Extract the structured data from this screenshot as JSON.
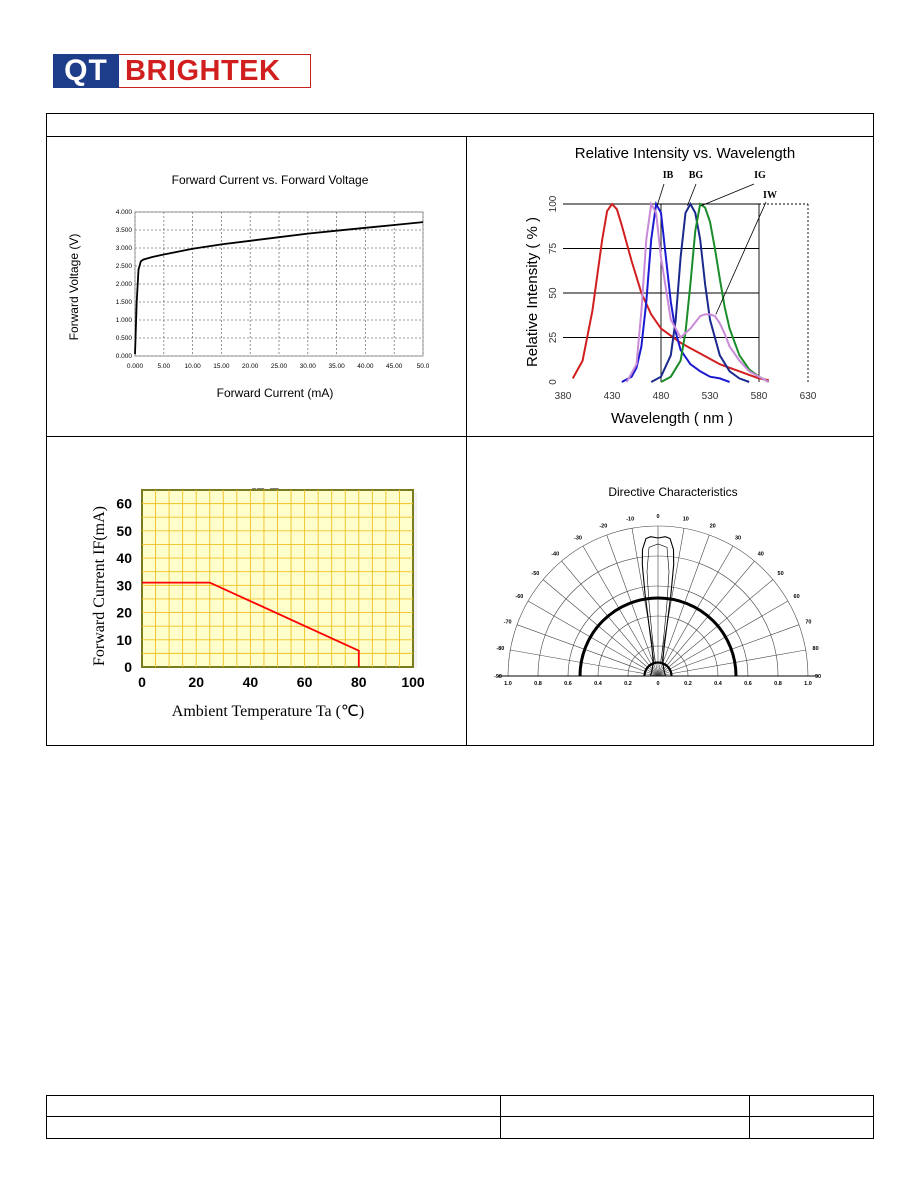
{
  "logo": {
    "part1": "QT",
    "part2": "BRIGHTEK"
  },
  "chart_data": [
    {
      "type": "line",
      "title": "Forward Current vs. Forward Voltage",
      "xlabel": "Forward Current (mA)",
      "ylabel": "Forward Voltage (V)",
      "x_ticks": [
        "0.000",
        "5.00",
        "10.00",
        "15.00",
        "20.00",
        "25.00",
        "30.00",
        "35.00",
        "40.00",
        "45.00",
        "50.0"
      ],
      "y_ticks": [
        "0.000",
        "0.500",
        "1.000",
        "1.500",
        "2.000",
        "2.500",
        "3.000",
        "3.500",
        "4.000"
      ],
      "xlim": [
        0,
        50
      ],
      "ylim": [
        0,
        4
      ],
      "grid": true,
      "series": [
        {
          "color": "#000000",
          "x": [
            0,
            0.3,
            0.6,
            1.0,
            1.5,
            3,
            5,
            10,
            15,
            20,
            25,
            30,
            35,
            40,
            45,
            50
          ],
          "y": [
            0.05,
            1.5,
            2.4,
            2.63,
            2.68,
            2.75,
            2.82,
            2.98,
            3.1,
            3.2,
            3.3,
            3.4,
            3.48,
            3.56,
            3.64,
            3.72
          ]
        }
      ]
    },
    {
      "type": "line",
      "title": "Relative Intensity vs. Wavelength",
      "xlabel": "Wavelength ( nm )",
      "ylabel": "Relative Intensity ( % )",
      "x_ticks": [
        "380",
        "430",
        "480",
        "530",
        "580",
        "630"
      ],
      "y_ticks": [
        "0",
        "25",
        "50",
        "75",
        "100"
      ],
      "xlim": [
        380,
        630
      ],
      "ylim": [
        0,
        100
      ],
      "grid": true,
      "annotations": [
        "IB",
        "BG",
        "IG",
        "IW"
      ],
      "series": [
        {
          "name": "IW",
          "color": "#d11f1f",
          "x": [
            390,
            400,
            410,
            420,
            425,
            430,
            435,
            440,
            450,
            460,
            470,
            480,
            490,
            500,
            510,
            520,
            530,
            540,
            550,
            560,
            570,
            580,
            590
          ],
          "y": [
            2,
            12,
            40,
            80,
            96,
            100,
            97,
            88,
            68,
            50,
            38,
            30,
            26,
            22,
            19,
            16,
            13,
            10,
            8,
            6,
            4,
            2,
            1
          ]
        },
        {
          "name": "IB",
          "color": "#1a1ad0",
          "x": [
            440,
            450,
            455,
            460,
            465,
            470,
            475,
            480,
            485,
            490,
            495,
            500,
            510,
            520,
            530,
            540,
            550
          ],
          "y": [
            0,
            3,
            8,
            20,
            45,
            80,
            100,
            95,
            70,
            45,
            28,
            18,
            10,
            6,
            3,
            2,
            0
          ]
        },
        {
          "name": "BG",
          "color": "#1a2a8c",
          "x": [
            470,
            480,
            490,
            495,
            500,
            505,
            510,
            515,
            520,
            525,
            530,
            540,
            550,
            560,
            570
          ],
          "y": [
            0,
            3,
            15,
            35,
            70,
            95,
            100,
            95,
            80,
            55,
            35,
            15,
            6,
            2,
            0
          ]
        },
        {
          "name": "IG",
          "color": "#1a8c2a",
          "x": [
            480,
            490,
            500,
            505,
            510,
            515,
            520,
            525,
            530,
            535,
            540,
            545,
            550,
            560,
            570,
            580,
            590
          ],
          "y": [
            0,
            3,
            12,
            28,
            55,
            85,
            100,
            98,
            90,
            75,
            58,
            42,
            30,
            15,
            7,
            3,
            0
          ]
        },
        {
          "name": "IW-violet",
          "color": "#c98ad8",
          "x": [
            445,
            455,
            460,
            465,
            470,
            475,
            480,
            490,
            500,
            510,
            520,
            525,
            530,
            535,
            540,
            545,
            550,
            560,
            570,
            580,
            590
          ],
          "y": [
            0,
            10,
            40,
            80,
            100,
            95,
            70,
            35,
            25,
            30,
            37,
            38,
            38,
            37,
            33,
            27,
            20,
            12,
            6,
            3,
            0
          ]
        }
      ]
    },
    {
      "type": "line",
      "title": "IF-Ta",
      "xlabel": "Ambient Temperature Ta (℃)",
      "ylabel": "Forward Current IF(mA)",
      "x_ticks": [
        "0",
        "20",
        "40",
        "60",
        "80",
        "100"
      ],
      "y_ticks": [
        "0",
        "10",
        "20",
        "30",
        "40",
        "50",
        "60"
      ],
      "xlim": [
        0,
        100
      ],
      "ylim": [
        0,
        65
      ],
      "grid": true,
      "series": [
        {
          "color": "#ff0000",
          "x": [
            0,
            25,
            80,
            80
          ],
          "y": [
            31,
            31,
            6,
            0
          ]
        }
      ]
    },
    {
      "type": "polar",
      "title": "Directive Characteristics",
      "angle_labels": [
        "-90",
        "-80",
        "-70",
        "-60",
        "-50",
        "-40",
        "-30",
        "-20",
        "-10",
        "0",
        "10",
        "20",
        "30",
        "40",
        "50",
        "60",
        "70",
        "80",
        "90"
      ],
      "radius_labels": [
        "1.0",
        "0.8",
        "0.6",
        "0.4",
        "0.2",
        "0",
        "0.2",
        "0.4",
        "0.6",
        "0.8",
        "1.0"
      ],
      "grid": true
    }
  ]
}
